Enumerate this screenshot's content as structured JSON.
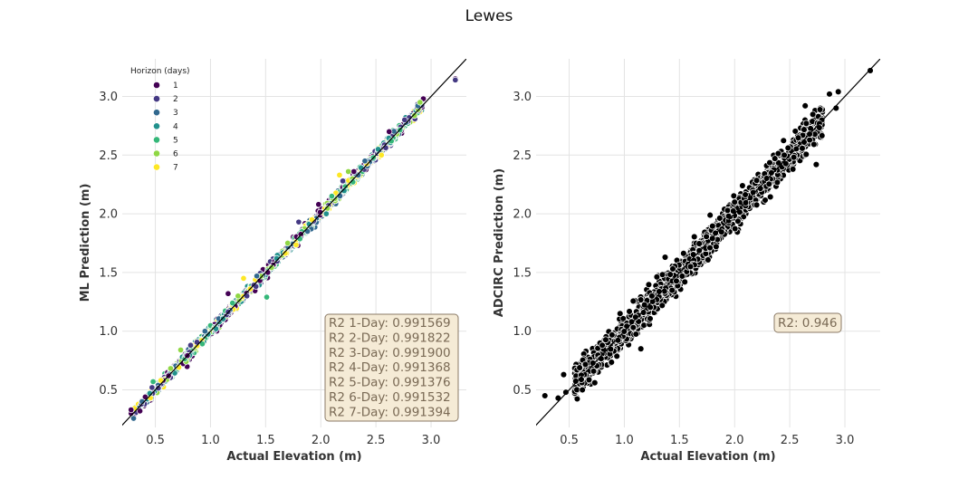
{
  "title": "Lewes",
  "legend": {
    "title": "Horizon (days)",
    "items": [
      {
        "label": "1",
        "color": "#440154"
      },
      {
        "label": "2",
        "color": "#443983"
      },
      {
        "label": "3",
        "color": "#31688e"
      },
      {
        "label": "4",
        "color": "#21918c"
      },
      {
        "label": "5",
        "color": "#35b779"
      },
      {
        "label": "6",
        "color": "#8fd744"
      },
      {
        "label": "7",
        "color": "#fde725"
      }
    ]
  },
  "chart_data": [
    {
      "type": "scatter",
      "xlabel": "Actual Elevation (m)",
      "ylabel": "ML Prediction (m)",
      "xlim": [
        0.2,
        3.32
      ],
      "ylim": [
        0.18,
        3.32
      ],
      "xticks": [
        "0.5",
        "1.0",
        "1.5",
        "2.0",
        "2.5",
        "3.0"
      ],
      "yticks": [
        "0.5",
        "1.0",
        "1.5",
        "2.0",
        "2.5",
        "3.0"
      ],
      "grid": true,
      "legend_position": "top-left",
      "reference_line": "y = x",
      "series": [
        {
          "name": "1",
          "color": "#440154",
          "points": [
            [
              0.28,
              0.3
            ],
            [
              0.28,
              0.33
            ],
            [
              0.57,
              0.58
            ],
            [
              0.62,
              0.62
            ],
            [
              1.16,
              1.32
            ],
            [
              1.52,
              1.5
            ],
            [
              1.98,
              2.08
            ],
            [
              2.3,
              2.36
            ],
            [
              2.62,
              2.7
            ],
            [
              2.93,
              2.98
            ],
            [
              3.22,
              3.15
            ]
          ]
        },
        {
          "name": "2",
          "color": "#443983",
          "points": [
            [
              0.47,
              0.52
            ],
            [
              0.82,
              0.88
            ],
            [
              1.33,
              1.3
            ],
            [
              1.8,
              1.93
            ],
            [
              2.2,
              2.28
            ],
            [
              2.76,
              2.8
            ],
            [
              3.22,
              3.14
            ]
          ]
        },
        {
          "name": "3",
          "color": "#31688e",
          "points": [
            [
              0.38,
              0.4
            ],
            [
              0.95,
              1.0
            ],
            [
              1.42,
              1.47
            ],
            [
              1.88,
              1.85
            ],
            [
              2.4,
              2.45
            ],
            [
              2.88,
              2.92
            ]
          ]
        },
        {
          "name": "4",
          "color": "#21918c",
          "points": [
            [
              0.45,
              0.47
            ],
            [
              1.05,
              1.02
            ],
            [
              1.6,
              1.62
            ],
            [
              2.05,
              2.0
            ],
            [
              2.52,
              2.55
            ]
          ]
        },
        {
          "name": "5",
          "color": "#35b779",
          "points": [
            [
              0.48,
              0.57
            ],
            [
              1.2,
              1.24
            ],
            [
              1.51,
              1.29
            ],
            [
              2.1,
              2.15
            ],
            [
              2.64,
              2.62
            ]
          ]
        },
        {
          "name": "6",
          "color": "#8fd744",
          "points": [
            [
              0.73,
              0.84
            ],
            [
              1.25,
              1.3
            ],
            [
              1.7,
              1.75
            ],
            [
              2.25,
              2.36
            ],
            [
              2.9,
              2.95
            ]
          ]
        },
        {
          "name": "7",
          "color": "#fde725",
          "points": [
            [
              0.55,
              0.58
            ],
            [
              1.3,
              1.45
            ],
            [
              1.92,
              1.95
            ],
            [
              2.17,
              2.33
            ],
            [
              2.55,
              2.5
            ]
          ]
        }
      ],
      "annotations": [
        "R2 1-Day: 0.991569",
        "R2 2-Day: 0.991822",
        "R2 3-Day: 0.991900",
        "R2 4-Day: 0.991368",
        "R2 5-Day: 0.991376",
        "R2 6-Day: 0.991532",
        "R2 7-Day: 0.991394"
      ]
    },
    {
      "type": "scatter",
      "xlabel": "Actual Elevation (m)",
      "ylabel": "ADCIRC Prediction (m)",
      "xlim": [
        0.2,
        3.32
      ],
      "ylim": [
        0.18,
        3.32
      ],
      "xticks": [
        "0.5",
        "1.0",
        "1.5",
        "2.0",
        "2.5",
        "3.0"
      ],
      "yticks": [
        "0.5",
        "1.0",
        "1.5",
        "2.0",
        "2.5",
        "3.0"
      ],
      "grid": true,
      "reference_line": "y = x",
      "series": [
        {
          "color": "#000000",
          "points": [
            [
              0.28,
              0.45
            ],
            [
              0.4,
              0.43
            ],
            [
              0.47,
              0.48
            ],
            [
              0.45,
              0.63
            ],
            [
              0.62,
              0.5
            ],
            [
              0.8,
              0.88
            ],
            [
              1.25,
              1.3
            ],
            [
              1.6,
              1.55
            ],
            [
              2.0,
              2.1
            ],
            [
              2.45,
              2.5
            ],
            [
              2.86,
              3.02
            ],
            [
              2.94,
              3.04
            ],
            [
              2.92,
              2.9
            ],
            [
              3.23,
              3.22
            ],
            [
              2.64,
              2.92
            ],
            [
              2.65,
              2.77
            ],
            [
              2.74,
              2.42
            ],
            [
              1.15,
              0.85
            ],
            [
              1.37,
              1.63
            ]
          ]
        }
      ],
      "annotations": [
        "R2: 0.946"
      ]
    }
  ]
}
